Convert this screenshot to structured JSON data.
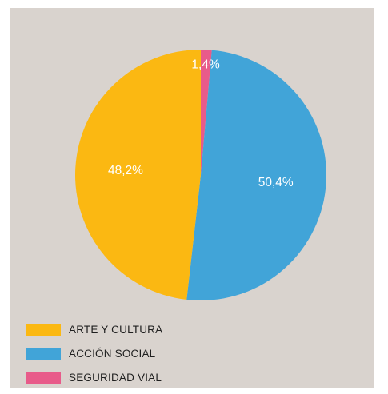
{
  "chart_data": {
    "type": "pie",
    "title": "",
    "start_angle_deg": 0,
    "direction": "clockwise",
    "slices": [
      {
        "label": "SEGURIDAD VIAL",
        "value": 1.4,
        "display": "1,4%",
        "color": "#e85b8a"
      },
      {
        "label": "ACCIÓN SOCIAL",
        "value": 50.4,
        "display": "50,4%",
        "color": "#41a4d8"
      },
      {
        "label": "ARTE Y CULTURA",
        "value": 48.2,
        "display": "48,2%",
        "color": "#fbb812"
      }
    ],
    "legend": [
      {
        "label": "ARTE Y CULTURA",
        "color": "#fbb812"
      },
      {
        "label": "ACCIÓN SOCIAL",
        "color": "#41a4d8"
      },
      {
        "label": "SEGURIDAD VIAL",
        "color": "#e85b8a"
      }
    ],
    "legend_position": "bottom-left",
    "background_color": "#d9d3ce"
  }
}
